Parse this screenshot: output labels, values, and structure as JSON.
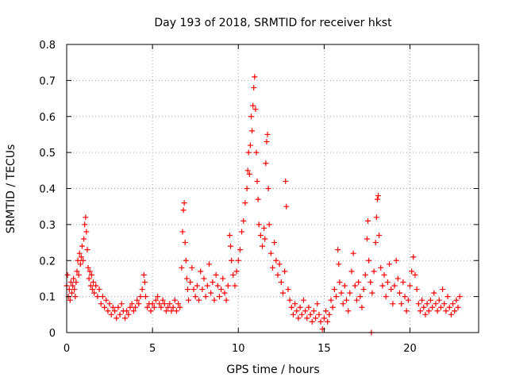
{
  "chart_data": {
    "type": "scatter",
    "title": "Day 193 of 2018, SRMTID for receiver hkst",
    "xlabel": "GPS time / hours",
    "ylabel": "SRMTID / TECUs",
    "xlim": [
      0,
      24
    ],
    "ylim": [
      0,
      0.8
    ],
    "x_ticks": [
      "0",
      "5",
      "10",
      "15",
      "20"
    ],
    "x_tick_values": [
      0,
      5,
      10,
      15,
      20
    ],
    "y_ticks": [
      "0",
      "0.1",
      "0.2",
      "0.3",
      "0.4",
      "0.5",
      "0.6",
      "0.7",
      "0.8"
    ],
    "y_tick_values": [
      0,
      0.1,
      0.2,
      0.3,
      0.4,
      0.5,
      0.6,
      0.7,
      0.8
    ],
    "grid": true,
    "marker": "+",
    "color": "#ff0000",
    "series": [
      {
        "name": "SRMTID",
        "points": [
          [
            0.0,
            0.13
          ],
          [
            0.05,
            0.16
          ],
          [
            0.1,
            0.1
          ],
          [
            0.15,
            0.12
          ],
          [
            0.2,
            0.09
          ],
          [
            0.25,
            0.14
          ],
          [
            0.3,
            0.11
          ],
          [
            0.35,
            0.13
          ],
          [
            0.4,
            0.15
          ],
          [
            0.45,
            0.12
          ],
          [
            0.5,
            0.1
          ],
          [
            0.55,
            0.14
          ],
          [
            0.6,
            0.17
          ],
          [
            0.65,
            0.2
          ],
          [
            0.7,
            0.16
          ],
          [
            0.75,
            0.22
          ],
          [
            0.8,
            0.19
          ],
          [
            0.85,
            0.21
          ],
          [
            0.9,
            0.24
          ],
          [
            0.95,
            0.2
          ],
          [
            1.0,
            0.26
          ],
          [
            1.05,
            0.3
          ],
          [
            1.1,
            0.32
          ],
          [
            1.15,
            0.28
          ],
          [
            1.2,
            0.23
          ],
          [
            1.25,
            0.18
          ],
          [
            1.3,
            0.15
          ],
          [
            1.35,
            0.17
          ],
          [
            1.4,
            0.13
          ],
          [
            1.45,
            0.16
          ],
          [
            1.5,
            0.12
          ],
          [
            1.55,
            0.14
          ],
          [
            1.6,
            0.11
          ],
          [
            1.7,
            0.13
          ],
          [
            1.8,
            0.1
          ],
          [
            1.9,
            0.12
          ],
          [
            2.0,
            0.08
          ],
          [
            2.1,
            0.1
          ],
          [
            2.2,
            0.07
          ],
          [
            2.3,
            0.09
          ],
          [
            2.4,
            0.06
          ],
          [
            2.5,
            0.08
          ],
          [
            2.6,
            0.05
          ],
          [
            2.7,
            0.07
          ],
          [
            2.8,
            0.06
          ],
          [
            2.9,
            0.04
          ],
          [
            3.0,
            0.07
          ],
          [
            3.1,
            0.05
          ],
          [
            3.2,
            0.08
          ],
          [
            3.3,
            0.06
          ],
          [
            3.4,
            0.04
          ],
          [
            3.5,
            0.06
          ],
          [
            3.6,
            0.05
          ],
          [
            3.7,
            0.07
          ],
          [
            3.8,
            0.08
          ],
          [
            3.9,
            0.06
          ],
          [
            4.0,
            0.07
          ],
          [
            4.1,
            0.09
          ],
          [
            4.2,
            0.08
          ],
          [
            4.3,
            0.1
          ],
          [
            4.4,
            0.12
          ],
          [
            4.5,
            0.16
          ],
          [
            4.55,
            0.14
          ],
          [
            4.6,
            0.1
          ],
          [
            4.7,
            0.07
          ],
          [
            4.8,
            0.08
          ],
          [
            4.9,
            0.06
          ],
          [
            5.0,
            0.08
          ],
          [
            5.1,
            0.07
          ],
          [
            5.2,
            0.09
          ],
          [
            5.3,
            0.1
          ],
          [
            5.4,
            0.08
          ],
          [
            5.5,
            0.07
          ],
          [
            5.6,
            0.09
          ],
          [
            5.7,
            0.08
          ],
          [
            5.8,
            0.06
          ],
          [
            5.9,
            0.07
          ],
          [
            6.0,
            0.08
          ],
          [
            6.1,
            0.06
          ],
          [
            6.2,
            0.07
          ],
          [
            6.3,
            0.09
          ],
          [
            6.4,
            0.06
          ],
          [
            6.5,
            0.08
          ],
          [
            6.6,
            0.07
          ],
          [
            6.7,
            0.18
          ],
          [
            6.75,
            0.28
          ],
          [
            6.8,
            0.34
          ],
          [
            6.85,
            0.36
          ],
          [
            6.9,
            0.25
          ],
          [
            6.95,
            0.2
          ],
          [
            7.0,
            0.15
          ],
          [
            7.05,
            0.12
          ],
          [
            7.1,
            0.09
          ],
          [
            7.2,
            0.14
          ],
          [
            7.3,
            0.18
          ],
          [
            7.4,
            0.12
          ],
          [
            7.5,
            0.1
          ],
          [
            7.6,
            0.13
          ],
          [
            7.7,
            0.09
          ],
          [
            7.8,
            0.17
          ],
          [
            7.9,
            0.12
          ],
          [
            8.0,
            0.15
          ],
          [
            8.1,
            0.1
          ],
          [
            8.2,
            0.13
          ],
          [
            8.3,
            0.19
          ],
          [
            8.4,
            0.11
          ],
          [
            8.5,
            0.14
          ],
          [
            8.6,
            0.09
          ],
          [
            8.7,
            0.16
          ],
          [
            8.8,
            0.13
          ],
          [
            8.9,
            0.1
          ],
          [
            9.0,
            0.12
          ],
          [
            9.1,
            0.15
          ],
          [
            9.2,
            0.11
          ],
          [
            9.3,
            0.09
          ],
          [
            9.4,
            0.13
          ],
          [
            9.5,
            0.27
          ],
          [
            9.55,
            0.24
          ],
          [
            9.6,
            0.2
          ],
          [
            9.7,
            0.16
          ],
          [
            9.8,
            0.13
          ],
          [
            9.9,
            0.17
          ],
          [
            10.0,
            0.2
          ],
          [
            10.1,
            0.23
          ],
          [
            10.2,
            0.28
          ],
          [
            10.3,
            0.31
          ],
          [
            10.4,
            0.36
          ],
          [
            10.5,
            0.4
          ],
          [
            10.55,
            0.45
          ],
          [
            10.6,
            0.5
          ],
          [
            10.65,
            0.44
          ],
          [
            10.7,
            0.52
          ],
          [
            10.75,
            0.6
          ],
          [
            10.8,
            0.56
          ],
          [
            10.85,
            0.63
          ],
          [
            10.9,
            0.68
          ],
          [
            10.95,
            0.71
          ],
          [
            11.0,
            0.62
          ],
          [
            11.05,
            0.5
          ],
          [
            11.1,
            0.42
          ],
          [
            11.15,
            0.37
          ],
          [
            11.2,
            0.3
          ],
          [
            11.3,
            0.27
          ],
          [
            11.4,
            0.24
          ],
          [
            11.5,
            0.29
          ],
          [
            11.55,
            0.26
          ],
          [
            11.6,
            0.47
          ],
          [
            11.65,
            0.53
          ],
          [
            11.7,
            0.55
          ],
          [
            11.75,
            0.4
          ],
          [
            11.8,
            0.3
          ],
          [
            11.9,
            0.22
          ],
          [
            12.0,
            0.18
          ],
          [
            12.1,
            0.25
          ],
          [
            12.2,
            0.2
          ],
          [
            12.3,
            0.16
          ],
          [
            12.4,
            0.19
          ],
          [
            12.5,
            0.14
          ],
          [
            12.6,
            0.11
          ],
          [
            12.7,
            0.17
          ],
          [
            12.75,
            0.42
          ],
          [
            12.8,
            0.35
          ],
          [
            12.9,
            0.12
          ],
          [
            13.0,
            0.09
          ],
          [
            13.1,
            0.07
          ],
          [
            13.2,
            0.05
          ],
          [
            13.3,
            0.08
          ],
          [
            13.4,
            0.06
          ],
          [
            13.5,
            0.04
          ],
          [
            13.6,
            0.07
          ],
          [
            13.7,
            0.05
          ],
          [
            13.8,
            0.09
          ],
          [
            13.9,
            0.06
          ],
          [
            14.0,
            0.04
          ],
          [
            14.1,
            0.07
          ],
          [
            14.2,
            0.05
          ],
          [
            14.3,
            0.03
          ],
          [
            14.4,
            0.06
          ],
          [
            14.5,
            0.04
          ],
          [
            14.6,
            0.08
          ],
          [
            14.7,
            0.05
          ],
          [
            14.8,
            0.03
          ],
          [
            14.9,
            0.01
          ],
          [
            15.0,
            0.04
          ],
          [
            15.1,
            0.06
          ],
          [
            15.2,
            0.03
          ],
          [
            15.3,
            0.05
          ],
          [
            15.4,
            0.09
          ],
          [
            15.5,
            0.07
          ],
          [
            15.6,
            0.12
          ],
          [
            15.7,
            0.1
          ],
          [
            15.8,
            0.23
          ],
          [
            15.85,
            0.19
          ],
          [
            15.9,
            0.14
          ],
          [
            16.0,
            0.11
          ],
          [
            16.1,
            0.08
          ],
          [
            16.2,
            0.13
          ],
          [
            16.3,
            0.09
          ],
          [
            16.4,
            0.06
          ],
          [
            16.5,
            0.11
          ],
          [
            16.6,
            0.17
          ],
          [
            16.7,
            0.22
          ],
          [
            16.8,
            0.13
          ],
          [
            16.9,
            0.09
          ],
          [
            17.0,
            0.14
          ],
          [
            17.1,
            0.1
          ],
          [
            17.2,
            0.07
          ],
          [
            17.3,
            0.12
          ],
          [
            17.4,
            0.16
          ],
          [
            17.5,
            0.26
          ],
          [
            17.55,
            0.31
          ],
          [
            17.6,
            0.2
          ],
          [
            17.7,
            0.14
          ],
          [
            17.75,
            0.0
          ],
          [
            17.8,
            0.11
          ],
          [
            17.9,
            0.17
          ],
          [
            18.0,
            0.25
          ],
          [
            18.05,
            0.32
          ],
          [
            18.1,
            0.37
          ],
          [
            18.15,
            0.38
          ],
          [
            18.2,
            0.27
          ],
          [
            18.3,
            0.18
          ],
          [
            18.4,
            0.13
          ],
          [
            18.5,
            0.16
          ],
          [
            18.6,
            0.1
          ],
          [
            18.7,
            0.14
          ],
          [
            18.8,
            0.19
          ],
          [
            18.9,
            0.12
          ],
          [
            19.0,
            0.08
          ],
          [
            19.1,
            0.13
          ],
          [
            19.2,
            0.2
          ],
          [
            19.3,
            0.15
          ],
          [
            19.4,
            0.11
          ],
          [
            19.5,
            0.08
          ],
          [
            19.6,
            0.14
          ],
          [
            19.7,
            0.1
          ],
          [
            19.8,
            0.06
          ],
          [
            19.9,
            0.09
          ],
          [
            20.0,
            0.13
          ],
          [
            20.1,
            0.17
          ],
          [
            20.2,
            0.21
          ],
          [
            20.3,
            0.16
          ],
          [
            20.4,
            0.12
          ],
          [
            20.5,
            0.08
          ],
          [
            20.6,
            0.06
          ],
          [
            20.7,
            0.09
          ],
          [
            20.8,
            0.07
          ],
          [
            20.9,
            0.05
          ],
          [
            21.0,
            0.08
          ],
          [
            21.1,
            0.06
          ],
          [
            21.2,
            0.09
          ],
          [
            21.3,
            0.07
          ],
          [
            21.4,
            0.11
          ],
          [
            21.5,
            0.08
          ],
          [
            21.6,
            0.06
          ],
          [
            21.7,
            0.09
          ],
          [
            21.8,
            0.07
          ],
          [
            21.9,
            0.12
          ],
          [
            22.0,
            0.08
          ],
          [
            22.1,
            0.06
          ],
          [
            22.2,
            0.1
          ],
          [
            22.3,
            0.07
          ],
          [
            22.4,
            0.05
          ],
          [
            22.5,
            0.08
          ],
          [
            22.6,
            0.06
          ],
          [
            22.7,
            0.09
          ],
          [
            22.8,
            0.07
          ],
          [
            22.9,
            0.1
          ]
        ]
      }
    ]
  }
}
